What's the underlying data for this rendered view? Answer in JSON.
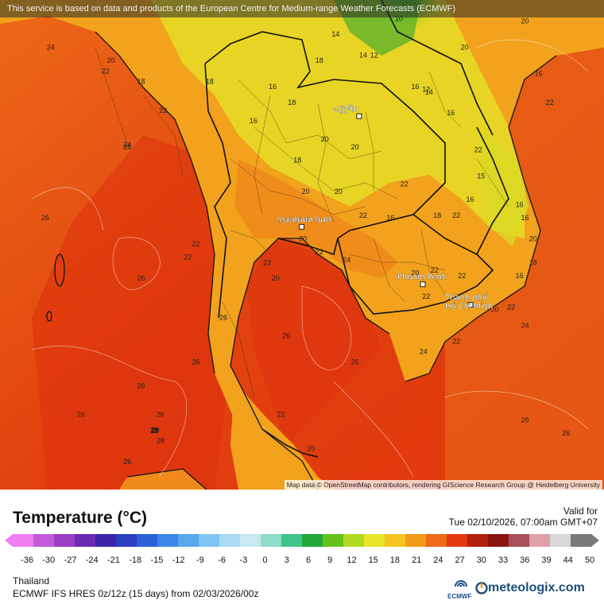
{
  "banner": "This service is based on data and products of the European Centre for Medium-range Weather Forecasts (ECMWF)",
  "attribution": "Map data © OpenStreetMap contributors, rendering GIScience Research Group @ Heidelberg University",
  "legend": {
    "title": "Temperature (°C)",
    "ticks": [
      "-36",
      "-30",
      "-27",
      "-24",
      "-21",
      "-18",
      "-15",
      "-12",
      "-9",
      "-6",
      "-3",
      "0",
      "3",
      "6",
      "9",
      "12",
      "15",
      "18",
      "21",
      "24",
      "27",
      "30",
      "33",
      "36",
      "39",
      "44",
      "50"
    ],
    "colors": [
      "#f07ef0",
      "#c55ad9",
      "#9a3fc4",
      "#6b2ab3",
      "#3d23a8",
      "#2a3fbf",
      "#2d62d6",
      "#3b86e6",
      "#58a8ee",
      "#7fc4f2",
      "#a8daf4",
      "#c8e8f2",
      "#8fdcc8",
      "#3fc48a",
      "#22a83a",
      "#64c21c",
      "#b0db20",
      "#e8e62a",
      "#f5c51f",
      "#f39a19",
      "#ee6a16",
      "#e13a10",
      "#b3200c",
      "#8a1410",
      "#a8505a",
      "#e0a0a8",
      "#d8d8d8",
      "#7a7a7a"
    ]
  },
  "valid": {
    "label": "Valid for",
    "time": "Tue 02/10/2026, 07:00am GMT+07"
  },
  "region": "Thailand",
  "model": "ECMWF IFS HRES 0z/12z (15 days) from  02/03/2026/00z",
  "brand": {
    "ecmwf": "ECMWF",
    "site": "meteologix.com"
  },
  "cities": [
    {
      "name": "กรุงเทพมหานคร",
      "lon": 100.5,
      "lat": 13.75
    },
    {
      "name": "Phnom Penh",
      "lon": 104.92,
      "lat": 11.56
    },
    {
      "name": "Thành phố",
      "name2": "Hồ Chí Minh",
      "lon": 106.66,
      "lat": 10.78
    },
    {
      "name": "ວຽງຈັນ",
      "lon": 102.6,
      "lat": 17.97
    }
  ],
  "map_labels": [
    {
      "v": "10",
      "lon": 103.9,
      "lat": 21.6
    },
    {
      "v": "12",
      "lon": 103.0,
      "lat": 20.2
    },
    {
      "v": "14",
      "lon": 102.6,
      "lat": 20.2
    },
    {
      "v": "14",
      "lon": 101.6,
      "lat": 21.0
    },
    {
      "v": "12",
      "lon": 104.9,
      "lat": 18.9
    },
    {
      "v": "14",
      "lon": 105.0,
      "lat": 18.8
    },
    {
      "v": "16",
      "lon": 104.5,
      "lat": 19.0
    },
    {
      "v": "16",
      "lon": 105.8,
      "lat": 18.0
    },
    {
      "v": "18",
      "lon": 101.0,
      "lat": 20.0
    },
    {
      "v": "16",
      "lon": 99.3,
      "lat": 19.0
    },
    {
      "v": "18",
      "lon": 100.0,
      "lat": 18.4
    },
    {
      "v": "18",
      "lon": 97.0,
      "lat": 19.2
    },
    {
      "v": "20",
      "lon": 101.2,
      "lat": 17.0
    },
    {
      "v": "20",
      "lon": 102.3,
      "lat": 16.7
    },
    {
      "v": "18",
      "lon": 100.2,
      "lat": 16.2
    },
    {
      "v": "20",
      "lon": 100.5,
      "lat": 15.0
    },
    {
      "v": "22",
      "lon": 102.6,
      "lat": 14.1
    },
    {
      "v": "16",
      "lon": 103.6,
      "lat": 14.0
    },
    {
      "v": "20",
      "lon": 101.7,
      "lat": 15.0
    },
    {
      "v": "18",
      "lon": 105.3,
      "lat": 14.1
    },
    {
      "v": "22",
      "lon": 106.0,
      "lat": 14.1
    },
    {
      "v": "16",
      "lon": 106.5,
      "lat": 14.7
    },
    {
      "v": "15",
      "lon": 106.9,
      "lat": 15.6
    },
    {
      "v": "22",
      "lon": 106.8,
      "lat": 16.6
    },
    {
      "v": "16",
      "lon": 108.5,
      "lat": 14.0
    },
    {
      "v": "20",
      "lon": 108.8,
      "lat": 13.2
    },
    {
      "v": "18",
      "lon": 108.8,
      "lat": 12.3
    },
    {
      "v": "16",
      "lon": 108.3,
      "lat": 11.8
    },
    {
      "v": "22",
      "lon": 105.2,
      "lat": 12.0
    },
    {
      "v": "22",
      "lon": 106.2,
      "lat": 11.8
    },
    {
      "v": "22",
      "lon": 104.9,
      "lat": 11.0
    },
    {
      "v": "20",
      "lon": 104.5,
      "lat": 11.9
    },
    {
      "v": "20",
      "lon": 107.4,
      "lat": 10.5
    },
    {
      "v": "22",
      "lon": 108.0,
      "lat": 10.6
    },
    {
      "v": "24",
      "lon": 108.5,
      "lat": 9.9
    },
    {
      "v": "22",
      "lon": 106.0,
      "lat": 9.3
    },
    {
      "v": "24",
      "lon": 104.8,
      "lat": 8.9
    },
    {
      "v": "24",
      "lon": 102.0,
      "lat": 12.4
    },
    {
      "v": "22",
      "lon": 101.0,
      "lat": 12.7
    },
    {
      "v": "20",
      "lon": 100.4,
      "lat": 13.2
    },
    {
      "v": "20",
      "lon": 99.4,
      "lat": 11.7
    },
    {
      "v": "22",
      "lon": 99.1,
      "lat": 12.3
    },
    {
      "v": "22",
      "lon": 99.6,
      "lat": 6.5
    },
    {
      "v": "20",
      "lon": 100.7,
      "lat": 5.2
    },
    {
      "v": "26",
      "lon": 102.3,
      "lat": 8.5
    },
    {
      "v": "26",
      "lon": 99.8,
      "lat": 9.5
    },
    {
      "v": "26",
      "lon": 97.5,
      "lat": 10.2
    },
    {
      "v": "26",
      "lon": 96.5,
      "lat": 8.5
    },
    {
      "v": "26",
      "lon": 94.5,
      "lat": 7.6
    },
    {
      "v": "26",
      "lon": 92.3,
      "lat": 6.5
    },
    {
      "v": "26",
      "lon": 94.5,
      "lat": 11.7
    },
    {
      "v": "26",
      "lon": 91.0,
      "lat": 14.0
    },
    {
      "v": "24",
      "lon": 94.0,
      "lat": 16.8
    },
    {
      "v": "26",
      "lon": 94.0,
      "lat": 16.7
    },
    {
      "v": "22",
      "lon": 95.3,
      "lat": 18.1
    },
    {
      "v": "18",
      "lon": 94.5,
      "lat": 19.2
    },
    {
      "v": "22",
      "lon": 96.5,
      "lat": 13.0
    },
    {
      "v": "22",
      "lon": 96.2,
      "lat": 12.5
    },
    {
      "v": "26",
      "lon": 95.2,
      "lat": 6.5
    },
    {
      "v": "28",
      "lon": 95.2,
      "lat": 5.5
    },
    {
      "v": "26",
      "lon": 94.0,
      "lat": 4.7
    },
    {
      "v": "26",
      "lon": 108.5,
      "lat": 6.3
    },
    {
      "v": "26",
      "lon": 110.0,
      "lat": 5.8
    },
    {
      "v": "16",
      "lon": 109.0,
      "lat": 19.5
    },
    {
      "v": "22",
      "lon": 109.4,
      "lat": 18.4
    },
    {
      "v": "20",
      "lon": 108.5,
      "lat": 21.5
    },
    {
      "v": "20",
      "lon": 106.3,
      "lat": 20.5
    },
    {
      "v": "24",
      "lon": 91.2,
      "lat": 20.5
    },
    {
      "v": "20",
      "lon": 93.4,
      "lat": 20.0
    },
    {
      "v": "22",
      "lon": 93.2,
      "lat": 19.6
    },
    {
      "v": "16",
      "lon": 98.6,
      "lat": 17.7
    },
    {
      "v": "22",
      "lon": 104.1,
      "lat": 15.3
    },
    {
      "v": "16",
      "lon": 108.3,
      "lat": 14.5
    }
  ],
  "max_label": {
    "v": "29",
    "lon": 95.0,
    "lat": 5.9
  }
}
